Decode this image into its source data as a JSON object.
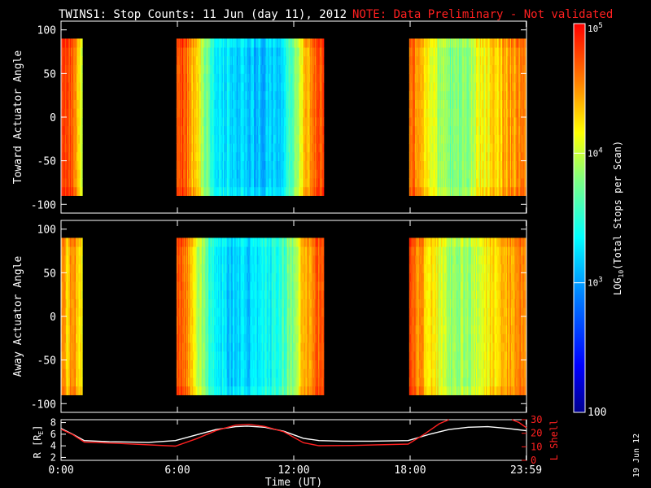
{
  "header": {
    "title": "TWINS1: Stop Counts: 11 Jun (day  11), 2012",
    "note": "NOTE: Data Preliminary - Not validated"
  },
  "side_date": "19 Jun 12",
  "colors": {
    "background": "#000000",
    "axis": "#ffffff",
    "note": "#ff2020",
    "l_shell_line": "#ff2020",
    "r_line": "#ffffff"
  },
  "chart_data": [
    {
      "type": "heatmap",
      "panel": "toward",
      "ylabel": "Toward Actuator Angle",
      "yticks": [
        -100,
        -50,
        0,
        50,
        100
      ],
      "ylim": [
        -110,
        110
      ],
      "xlim_hours": [
        0,
        24
      ],
      "data_angle_range": [
        -90,
        90
      ],
      "data_intervals_hours": [
        [
          0.0,
          1.1
        ],
        [
          5.95,
          13.55
        ],
        [
          17.95,
          24.0
        ]
      ],
      "profile_log10_counts": [
        [
          0.0,
          4.75
        ],
        [
          0.3,
          4.8
        ],
        [
          0.6,
          4.6
        ],
        [
          0.9,
          4.3
        ],
        [
          1.1,
          4.1
        ],
        [
          5.95,
          4.7
        ],
        [
          6.3,
          4.75
        ],
        [
          7.0,
          4.3
        ],
        [
          7.5,
          3.7
        ],
        [
          8.0,
          3.35
        ],
        [
          9.0,
          3.2
        ],
        [
          10.0,
          3.15
        ],
        [
          11.0,
          3.2
        ],
        [
          11.5,
          3.3
        ],
        [
          12.0,
          3.7
        ],
        [
          12.5,
          4.3
        ],
        [
          13.0,
          4.6
        ],
        [
          13.55,
          4.7
        ],
        [
          17.95,
          4.7
        ],
        [
          18.3,
          4.5
        ],
        [
          19.0,
          4.1
        ],
        [
          20.0,
          3.75
        ],
        [
          21.0,
          3.9
        ],
        [
          22.0,
          4.2
        ],
        [
          23.0,
          4.4
        ],
        [
          24.0,
          4.6
        ]
      ]
    },
    {
      "type": "heatmap",
      "panel": "away",
      "ylabel": "Away Actuator Angle",
      "yticks": [
        -100,
        -50,
        0,
        50,
        100
      ],
      "ylim": [
        -110,
        110
      ],
      "xlim_hours": [
        0,
        24
      ],
      "data_angle_range": [
        -90,
        90
      ],
      "data_intervals_hours": [
        [
          0.0,
          1.1
        ],
        [
          5.95,
          13.55
        ],
        [
          17.95,
          24.0
        ]
      ],
      "profile_log10_counts": [
        [
          0.0,
          4.6
        ],
        [
          0.3,
          4.3
        ],
        [
          0.6,
          4.5
        ],
        [
          1.1,
          4.2
        ],
        [
          5.95,
          4.75
        ],
        [
          6.5,
          4.6
        ],
        [
          7.0,
          4.1
        ],
        [
          7.5,
          3.6
        ],
        [
          8.0,
          3.3
        ],
        [
          9.0,
          3.2
        ],
        [
          10.0,
          3.25
        ],
        [
          11.0,
          3.4
        ],
        [
          12.0,
          3.8
        ],
        [
          12.5,
          4.4
        ],
        [
          13.0,
          4.6
        ],
        [
          13.55,
          4.75
        ],
        [
          17.95,
          4.7
        ],
        [
          18.5,
          4.5
        ],
        [
          19.5,
          4.1
        ],
        [
          20.5,
          3.8
        ],
        [
          21.5,
          4.0
        ],
        [
          22.5,
          4.3
        ],
        [
          24.0,
          4.6
        ]
      ]
    },
    {
      "type": "line",
      "panel": "orbit",
      "xlabel": "Time (UT)",
      "x_ticks": [
        "0:00",
        "6:00",
        "12:00",
        "18:00",
        "23:59"
      ],
      "x_tick_hours": [
        0,
        6,
        12,
        18,
        23.98
      ],
      "xlim_hours": [
        0,
        24
      ],
      "left_axis": {
        "label": "R [R",
        "label_sub": "E",
        "label_end": "]",
        "ticks": [
          2,
          4,
          6,
          8
        ],
        "lim": [
          1.5,
          8.5
        ]
      },
      "right_axis": {
        "label": "L Shell",
        "ticks": [
          0,
          10,
          20,
          30
        ],
        "lim": [
          0,
          30
        ]
      },
      "series": [
        {
          "axis": "left",
          "color": "#ffffff",
          "points": [
            [
              0.0,
              7.0
            ],
            [
              0.6,
              6.0
            ],
            [
              1.2,
              4.9
            ],
            [
              2.5,
              4.7
            ],
            [
              4.5,
              4.6
            ],
            [
              5.9,
              4.9
            ],
            [
              7.0,
              5.9
            ],
            [
              8.0,
              6.8
            ],
            [
              9.0,
              7.3
            ],
            [
              9.6,
              7.4
            ],
            [
              10.5,
              7.2
            ],
            [
              11.5,
              6.5
            ],
            [
              12.5,
              5.3
            ],
            [
              13.3,
              4.9
            ],
            [
              14.5,
              4.8
            ],
            [
              16.0,
              4.8
            ],
            [
              17.9,
              4.9
            ],
            [
              19.0,
              6.0
            ],
            [
              20.0,
              6.8
            ],
            [
              21.0,
              7.2
            ],
            [
              22.0,
              7.3
            ],
            [
              23.0,
              7.0
            ],
            [
              24.0,
              6.6
            ]
          ]
        },
        {
          "axis": "right",
          "color": "#ff2020",
          "points": [
            [
              0.0,
              23
            ],
            [
              0.6,
              19
            ],
            [
              1.2,
              13.5
            ],
            [
              3.0,
              12.5
            ],
            [
              5.9,
              10.5
            ],
            [
              7.0,
              16
            ],
            [
              8.0,
              22
            ],
            [
              9.0,
              26
            ],
            [
              9.7,
              26.5
            ],
            [
              10.5,
              25
            ],
            [
              11.5,
              21
            ],
            [
              12.5,
              13
            ],
            [
              13.3,
              10.8
            ],
            [
              15.0,
              11
            ],
            [
              17.9,
              12
            ],
            [
              18.7,
              19
            ],
            [
              19.5,
              27
            ],
            [
              20.0,
              31
            ]
          ]
        },
        {
          "axis": "right",
          "color": "#ff2020",
          "points": [
            [
              23.25,
              31
            ],
            [
              23.6,
              28
            ],
            [
              24.0,
              24
            ]
          ]
        }
      ]
    },
    {
      "type": "colorbar",
      "label_prefix": "LOG",
      "label_sub": "10",
      "label_suffix": "(Total Stops per Scan)",
      "log10_range": [
        2,
        5
      ],
      "ticks": [
        {
          "value": 5,
          "label": "10",
          "sup": "5"
        },
        {
          "value": 4,
          "label": "10",
          "sup": "4"
        },
        {
          "value": 3,
          "label": "10",
          "sup": "3"
        },
        {
          "value": 2,
          "label": "100",
          "sup": ""
        }
      ]
    }
  ]
}
